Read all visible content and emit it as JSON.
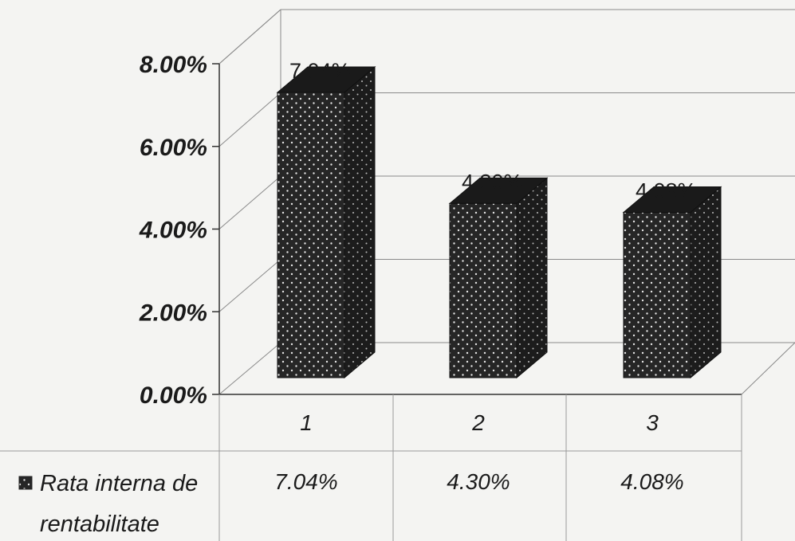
{
  "chart_data": {
    "type": "bar",
    "categories": [
      "1",
      "2",
      "3"
    ],
    "series": [
      {
        "name": "Rata interna de rentabilitate",
        "values": [
          7.04,
          4.3,
          4.08
        ]
      }
    ],
    "data_labels": [
      "7.04%",
      "4.30%",
      "4.08%"
    ],
    "y_tick_labels": [
      "0.00%",
      "2.00%",
      "4.00%",
      "6.00%",
      "8.00%"
    ],
    "ylim": [
      0,
      8
    ],
    "grid": true,
    "legend": "data-table",
    "colors": {
      "bar": "#2a2a2a",
      "dots": "#e8e8e8",
      "grid": "#8a8a8a"
    }
  },
  "legend_label_line1": "Rata interna de",
  "legend_label_line2": "rentabilitate"
}
